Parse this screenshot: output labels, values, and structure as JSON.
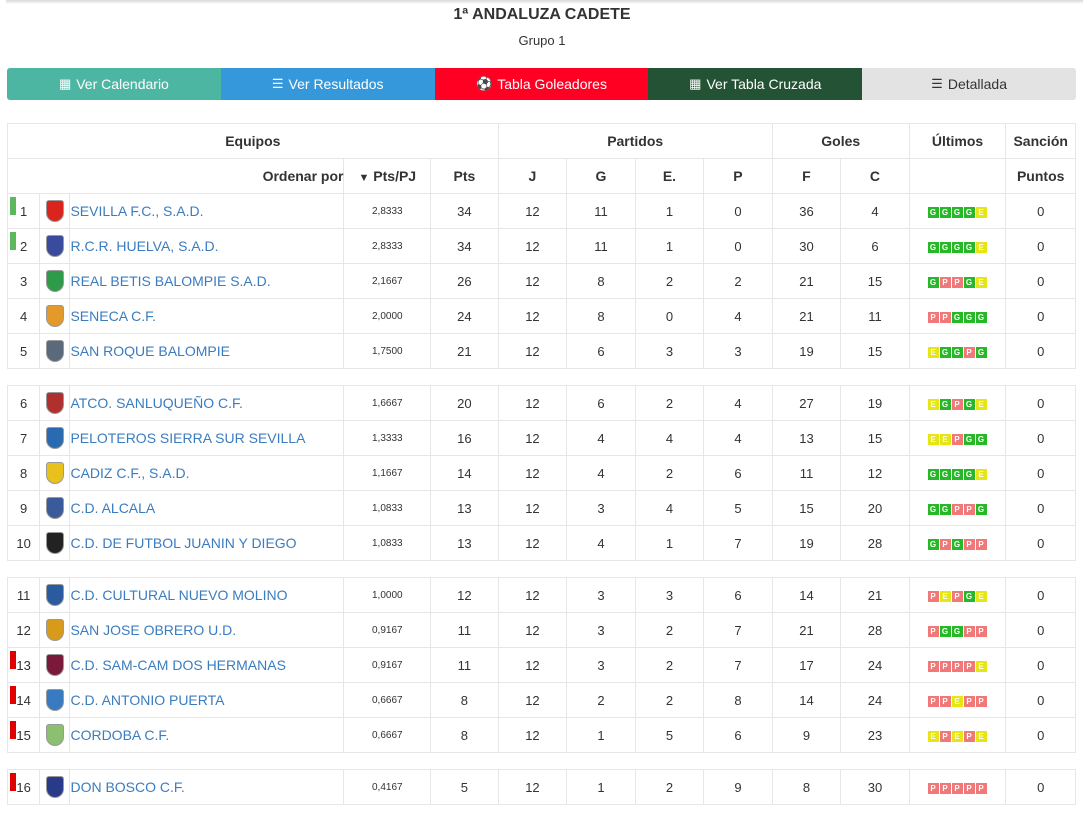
{
  "header": {
    "title": "1ª ANDALUZA CADETE",
    "subtitle": "Grupo 1"
  },
  "nav": [
    {
      "label": "Ver Calendario",
      "icon": "calendar-icon",
      "glyph": "▦"
    },
    {
      "label": "Ver Resultados",
      "icon": "list-icon",
      "glyph": "☰"
    },
    {
      "label": "Tabla Goleadores",
      "icon": "soccer-ball-icon",
      "glyph": "⚽"
    },
    {
      "label": "Ver Tabla Cruzada",
      "icon": "calculator-icon",
      "glyph": "▦"
    },
    {
      "label": "Detallada",
      "icon": "list-alt-icon",
      "glyph": "☰"
    }
  ],
  "table": {
    "headers": {
      "equipos": "Equipos",
      "partidos": "Partidos",
      "goles": "Goles",
      "ultimos": "Últimos",
      "sancion": "Sanción",
      "ordenar": "Ordenar por",
      "ptspj": "Pts/PJ",
      "pts": "Pts",
      "j": "J",
      "g": "G",
      "e": "E.",
      "p": "P",
      "f": "F",
      "c": "C",
      "puntos": "Puntos"
    },
    "rows": [
      {
        "pos": "1",
        "team": "SEVILLA F.C., S.A.D.",
        "ptspj": "2,8333",
        "pts": "34",
        "j": "12",
        "g": "11",
        "e": "1",
        "p": "0",
        "f": "36",
        "c": "4",
        "last": [
          "G",
          "G",
          "G",
          "G",
          "E"
        ],
        "sancion": "0",
        "mark": "g",
        "crest": "#d9251d"
      },
      {
        "pos": "2",
        "team": "R.C.R. HUELVA, S.A.D.",
        "ptspj": "2,8333",
        "pts": "34",
        "j": "12",
        "g": "11",
        "e": "1",
        "p": "0",
        "f": "30",
        "c": "6",
        "last": [
          "G",
          "G",
          "G",
          "G",
          "E"
        ],
        "sancion": "0",
        "mark": "g",
        "crest": "#3a4a9c"
      },
      {
        "pos": "3",
        "team": "REAL BETIS BALOMPIE S.A.D.",
        "ptspj": "2,1667",
        "pts": "26",
        "j": "12",
        "g": "8",
        "e": "2",
        "p": "2",
        "f": "21",
        "c": "15",
        "last": [
          "G",
          "P",
          "P",
          "G",
          "E"
        ],
        "sancion": "0",
        "mark": "",
        "crest": "#2e9b4a"
      },
      {
        "pos": "4",
        "team": "SENECA C.F.",
        "ptspj": "2,0000",
        "pts": "24",
        "j": "12",
        "g": "8",
        "e": "0",
        "p": "4",
        "f": "21",
        "c": "11",
        "last": [
          "P",
          "P",
          "G",
          "G",
          "G"
        ],
        "sancion": "0",
        "mark": "",
        "crest": "#e39a2a"
      },
      {
        "pos": "5",
        "team": "SAN ROQUE BALOMPIE",
        "ptspj": "1,7500",
        "pts": "21",
        "j": "12",
        "g": "6",
        "e": "3",
        "p": "3",
        "f": "19",
        "c": "15",
        "last": [
          "E",
          "G",
          "G",
          "P",
          "G"
        ],
        "sancion": "0",
        "mark": "",
        "crest": "#5a6a7a"
      },
      {
        "sep": true
      },
      {
        "pos": "6",
        "team": "ATCO. SANLUQUEÑO C.F.",
        "ptspj": "1,6667",
        "pts": "20",
        "j": "12",
        "g": "6",
        "e": "2",
        "p": "4",
        "f": "27",
        "c": "19",
        "last": [
          "E",
          "G",
          "P",
          "G",
          "E"
        ],
        "sancion": "0",
        "mark": "",
        "crest": "#b03030"
      },
      {
        "pos": "7",
        "team": "PELOTEROS SIERRA SUR SEVILLA",
        "ptspj": "1,3333",
        "pts": "16",
        "j": "12",
        "g": "4",
        "e": "4",
        "p": "4",
        "f": "13",
        "c": "15",
        "last": [
          "E",
          "E",
          "P",
          "G",
          "G"
        ],
        "sancion": "0",
        "mark": "",
        "crest": "#2a6ab0"
      },
      {
        "pos": "8",
        "team": "CADIZ C.F., S.A.D.",
        "ptspj": "1,1667",
        "pts": "14",
        "j": "12",
        "g": "4",
        "e": "2",
        "p": "6",
        "f": "11",
        "c": "12",
        "last": [
          "G",
          "G",
          "G",
          "G",
          "E"
        ],
        "sancion": "0",
        "mark": "",
        "crest": "#e8c21a"
      },
      {
        "pos": "9",
        "team": "C.D. ALCALA",
        "ptspj": "1,0833",
        "pts": "13",
        "j": "12",
        "g": "3",
        "e": "4",
        "p": "5",
        "f": "15",
        "c": "20",
        "last": [
          "G",
          "G",
          "P",
          "P",
          "G"
        ],
        "sancion": "0",
        "mark": "",
        "crest": "#3a5a9a"
      },
      {
        "pos": "10",
        "team": "C.D. DE FUTBOL JUANIN Y DIEGO",
        "ptspj": "1,0833",
        "pts": "13",
        "j": "12",
        "g": "4",
        "e": "1",
        "p": "7",
        "f": "19",
        "c": "28",
        "last": [
          "G",
          "P",
          "G",
          "P",
          "P"
        ],
        "sancion": "0",
        "mark": "",
        "crest": "#222222"
      },
      {
        "sep": true
      },
      {
        "pos": "11",
        "team": "C.D. CULTURAL NUEVO MOLINO",
        "ptspj": "1,0000",
        "pts": "12",
        "j": "12",
        "g": "3",
        "e": "3",
        "p": "6",
        "f": "14",
        "c": "21",
        "last": [
          "P",
          "E",
          "P",
          "G",
          "E"
        ],
        "sancion": "0",
        "mark": "",
        "crest": "#2a5aa0"
      },
      {
        "pos": "12",
        "team": "SAN JOSE OBRERO U.D.",
        "ptspj": "0,9167",
        "pts": "11",
        "j": "12",
        "g": "3",
        "e": "2",
        "p": "7",
        "f": "21",
        "c": "28",
        "last": [
          "P",
          "G",
          "G",
          "P",
          "P"
        ],
        "sancion": "0",
        "mark": "",
        "crest": "#d89a1a"
      },
      {
        "pos": "13",
        "team": "C.D. SAM-CAM DOS HERMANAS",
        "ptspj": "0,9167",
        "pts": "11",
        "j": "12",
        "g": "3",
        "e": "2",
        "p": "7",
        "f": "17",
        "c": "24",
        "last": [
          "P",
          "P",
          "P",
          "P",
          "E"
        ],
        "sancion": "0",
        "mark": "r",
        "crest": "#7a1a3a"
      },
      {
        "pos": "14",
        "team": "C.D. ANTONIO PUERTA",
        "ptspj": "0,6667",
        "pts": "8",
        "j": "12",
        "g": "2",
        "e": "2",
        "p": "8",
        "f": "14",
        "c": "24",
        "last": [
          "P",
          "P",
          "E",
          "P",
          "P"
        ],
        "sancion": "0",
        "mark": "r",
        "crest": "#3a7ac0"
      },
      {
        "pos": "15",
        "team": "CORDOBA C.F.",
        "ptspj": "0,6667",
        "pts": "8",
        "j": "12",
        "g": "1",
        "e": "5",
        "p": "6",
        "f": "9",
        "c": "23",
        "last": [
          "E",
          "P",
          "E",
          "P",
          "E"
        ],
        "sancion": "0",
        "mark": "r",
        "crest": "#8ac070"
      },
      {
        "sep": true
      },
      {
        "pos": "16",
        "team": "DON BOSCO C.F.",
        "ptspj": "0,4167",
        "pts": "5",
        "j": "12",
        "g": "1",
        "e": "2",
        "p": "9",
        "f": "8",
        "c": "30",
        "last": [
          "P",
          "P",
          "P",
          "P",
          "P"
        ],
        "sancion": "0",
        "mark": "r",
        "crest": "#2a3a8a"
      }
    ]
  }
}
